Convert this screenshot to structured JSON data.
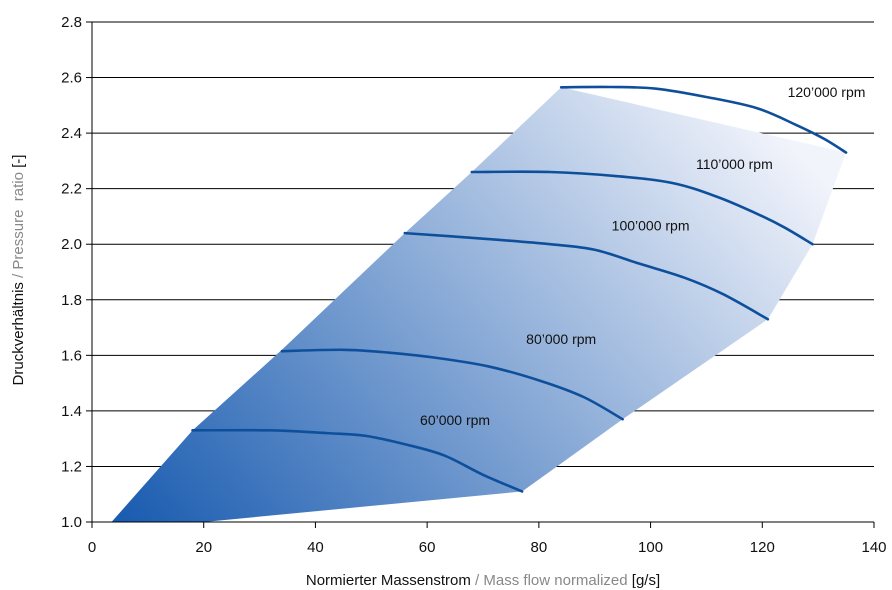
{
  "chart_data": {
    "type": "line",
    "xlabel_de": "Normierter Massenstrom",
    "xlabel_sep": " / ",
    "xlabel_en": "Mass flow normalized",
    "xlabel_unit": " [g/s]",
    "ylabel_de": "Druckverhältnis",
    "ylabel_sep": " / ",
    "ylabel_en": "Pressure  ratio",
    "ylabel_unit": " [-]",
    "xlim": [
      0,
      140
    ],
    "ylim": [
      1.0,
      2.8
    ],
    "x_ticks": [
      0,
      20,
      40,
      60,
      80,
      100,
      120,
      140
    ],
    "x_tick_labels": [
      "0",
      "20",
      "40",
      "60",
      "80",
      "100",
      "120",
      "140"
    ],
    "y_ticks": [
      1.0,
      1.2,
      1.4,
      1.6,
      1.8,
      2.0,
      2.2,
      2.4,
      2.6,
      2.8
    ],
    "y_tick_labels": [
      "1.0",
      "1.2",
      "1.4",
      "1.6",
      "1.8",
      "2.0",
      "2.2",
      "2.4",
      "2.6",
      "2.8"
    ],
    "grid": "horizontal",
    "colors": {
      "line": "#0e4f9c",
      "fill_dark": "#1a5cb0",
      "fill_light": "#f2f4fb",
      "grid": "#000000"
    },
    "operating_region": [
      [
        3.5,
        1.0
      ],
      [
        18,
        1.33
      ],
      [
        34,
        1.62
      ],
      [
        56,
        2.04
      ],
      [
        68,
        2.26
      ],
      [
        84,
        2.565
      ],
      [
        135,
        2.33
      ],
      [
        129,
        2.0
      ],
      [
        121,
        1.73
      ],
      [
        95,
        1.37
      ],
      [
        77,
        1.11
      ],
      [
        20,
        1.0
      ]
    ],
    "series": [
      {
        "name": "60’000 rpm",
        "points": [
          [
            18,
            1.33
          ],
          [
            32,
            1.33
          ],
          [
            42,
            1.32
          ],
          [
            49,
            1.31
          ],
          [
            56,
            1.28
          ],
          [
            63,
            1.24
          ],
          [
            70,
            1.17
          ],
          [
            77,
            1.11
          ]
        ]
      },
      {
        "name": "80’000 rpm",
        "points": [
          [
            34,
            1.615
          ],
          [
            45,
            1.62
          ],
          [
            53,
            1.61
          ],
          [
            62,
            1.59
          ],
          [
            71,
            1.56
          ],
          [
            80,
            1.51
          ],
          [
            88,
            1.45
          ],
          [
            95,
            1.37
          ]
        ]
      },
      {
        "name": "100’000 rpm",
        "points": [
          [
            56,
            2.04
          ],
          [
            70,
            2.02
          ],
          [
            82,
            2.0
          ],
          [
            90,
            1.98
          ],
          [
            98,
            1.93
          ],
          [
            106,
            1.88
          ],
          [
            113,
            1.82
          ],
          [
            121,
            1.73
          ]
        ]
      },
      {
        "name": "110’000 rpm",
        "points": [
          [
            68,
            2.26
          ],
          [
            82,
            2.26
          ],
          [
            94,
            2.245
          ],
          [
            104,
            2.22
          ],
          [
            112,
            2.17
          ],
          [
            119,
            2.11
          ],
          [
            124,
            2.06
          ],
          [
            129,
            2.0
          ]
        ]
      },
      {
        "name": "120’000 rpm",
        "points": [
          [
            84,
            2.565
          ],
          [
            93,
            2.566
          ],
          [
            101,
            2.56
          ],
          [
            110,
            2.53
          ],
          [
            119,
            2.49
          ],
          [
            126,
            2.43
          ],
          [
            131,
            2.38
          ],
          [
            135,
            2.33
          ]
        ]
      }
    ],
    "annotations": [
      {
        "text": "60’000 rpm",
        "x": 65,
        "y": 1.35
      },
      {
        "text": "80’000 rpm",
        "x": 84,
        "y": 1.64
      },
      {
        "text": "100’000 rpm",
        "x": 100,
        "y": 2.05
      },
      {
        "text": "110’000 rpm",
        "x": 115,
        "y": 2.27
      },
      {
        "text": "120’000 rpm",
        "x": 131.5,
        "y": 2.53
      }
    ]
  }
}
